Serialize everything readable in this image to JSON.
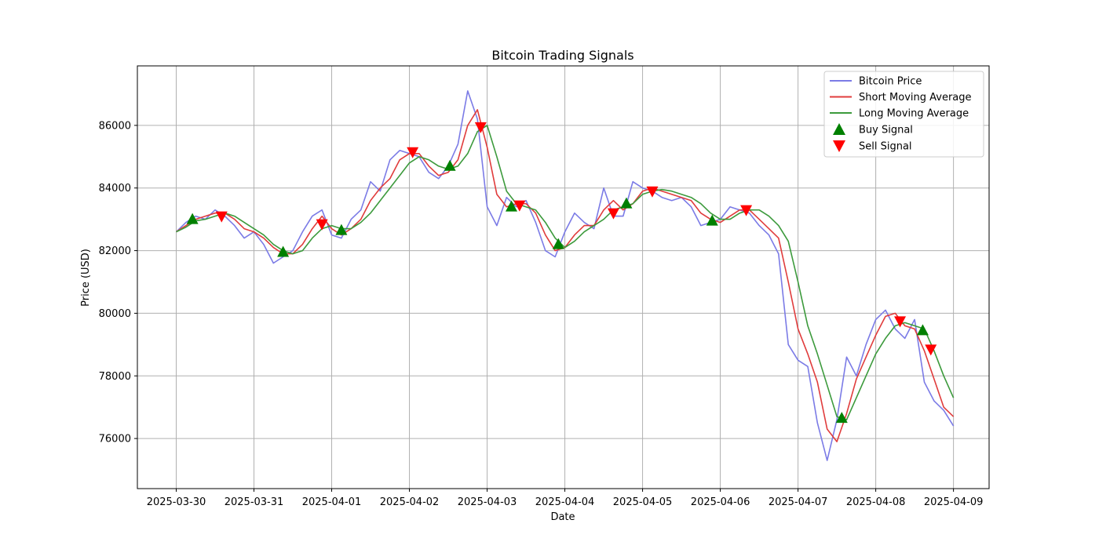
{
  "chart_data": {
    "type": "line",
    "title": "Bitcoin Trading Signals",
    "xlabel": "Date",
    "ylabel": "Price (USD)",
    "grid": true,
    "legend_position": "top-right",
    "xlim": [
      "2025-03-29 12:00",
      "2025-04-09 11:00"
    ],
    "ylim": [
      74400,
      87900
    ],
    "x_ticks": [
      "2025-03-30",
      "2025-03-31",
      "2025-04-01",
      "2025-04-02",
      "2025-04-03",
      "2025-04-04",
      "2025-04-05",
      "2025-04-06",
      "2025-04-07",
      "2025-04-08",
      "2025-04-09"
    ],
    "y_ticks": [
      76000,
      78000,
      80000,
      82000,
      84000,
      86000
    ],
    "series": [
      {
        "name": "Bitcoin Price",
        "color": "#7b7be6",
        "x": [
          "2025-03-30 00:00",
          "2025-03-30 03:00",
          "2025-03-30 06:00",
          "2025-03-30 09:00",
          "2025-03-30 12:00",
          "2025-03-30 15:00",
          "2025-03-30 18:00",
          "2025-03-30 21:00",
          "2025-03-31 00:00",
          "2025-03-31 03:00",
          "2025-03-31 06:00",
          "2025-03-31 09:00",
          "2025-03-31 12:00",
          "2025-03-31 15:00",
          "2025-03-31 18:00",
          "2025-03-31 21:00",
          "2025-04-01 00:00",
          "2025-04-01 03:00",
          "2025-04-01 06:00",
          "2025-04-01 09:00",
          "2025-04-01 12:00",
          "2025-04-01 15:00",
          "2025-04-01 18:00",
          "2025-04-01 21:00",
          "2025-04-02 00:00",
          "2025-04-02 03:00",
          "2025-04-02 06:00",
          "2025-04-02 09:00",
          "2025-04-02 12:00",
          "2025-04-02 15:00",
          "2025-04-02 18:00",
          "2025-04-02 21:00",
          "2025-04-03 00:00",
          "2025-04-03 03:00",
          "2025-04-03 06:00",
          "2025-04-03 09:00",
          "2025-04-03 12:00",
          "2025-04-03 15:00",
          "2025-04-03 18:00",
          "2025-04-03 21:00",
          "2025-04-04 00:00",
          "2025-04-04 03:00",
          "2025-04-04 06:00",
          "2025-04-04 09:00",
          "2025-04-04 12:00",
          "2025-04-04 15:00",
          "2025-04-04 18:00",
          "2025-04-04 21:00",
          "2025-04-05 00:00",
          "2025-04-05 03:00",
          "2025-04-05 06:00",
          "2025-04-05 09:00",
          "2025-04-05 12:00",
          "2025-04-05 15:00",
          "2025-04-05 18:00",
          "2025-04-05 21:00",
          "2025-04-06 00:00",
          "2025-04-06 03:00",
          "2025-04-06 06:00",
          "2025-04-06 09:00",
          "2025-04-06 12:00",
          "2025-04-06 15:00",
          "2025-04-06 18:00",
          "2025-04-06 21:00",
          "2025-04-07 00:00",
          "2025-04-07 03:00",
          "2025-04-07 06:00",
          "2025-04-07 09:00",
          "2025-04-07 12:00",
          "2025-04-07 15:00",
          "2025-04-07 18:00",
          "2025-04-07 21:00",
          "2025-04-08 00:00",
          "2025-04-08 03:00",
          "2025-04-08 06:00",
          "2025-04-08 09:00",
          "2025-04-08 12:00",
          "2025-04-08 15:00",
          "2025-04-08 18:00",
          "2025-04-08 21:00",
          "2025-04-09 00:00"
        ],
        "values": [
          82600,
          82900,
          83100,
          83000,
          83300,
          83100,
          82800,
          82400,
          82600,
          82200,
          81600,
          81800,
          82000,
          82600,
          83100,
          83300,
          82500,
          82400,
          83000,
          83300,
          84200,
          83900,
          84900,
          85200,
          85100,
          85000,
          84500,
          84300,
          84700,
          85400,
          87100,
          86200,
          83400,
          82800,
          83700,
          83400,
          83600,
          82900,
          82000,
          81800,
          82600,
          83200,
          82900,
          82700,
          84000,
          83100,
          83100,
          84200,
          84000,
          83900,
          83700,
          83600,
          83700,
          83400,
          82800,
          82900,
          83000,
          83400,
          83300,
          83200,
          82800,
          82500,
          81900,
          79000,
          78500,
          78300,
          76500,
          75300,
          76600,
          78600,
          78000,
          79000,
          79800,
          80100,
          79500,
          79200,
          79800,
          77800,
          77200,
          76900,
          76400
        ]
      },
      {
        "name": "Short Moving Average",
        "color": "#e03c3c",
        "x": [
          "2025-03-30 00:00",
          "2025-03-30 03:00",
          "2025-03-30 06:00",
          "2025-03-30 09:00",
          "2025-03-30 12:00",
          "2025-03-30 15:00",
          "2025-03-30 18:00",
          "2025-03-30 21:00",
          "2025-03-31 00:00",
          "2025-03-31 03:00",
          "2025-03-31 06:00",
          "2025-03-31 09:00",
          "2025-03-31 12:00",
          "2025-03-31 15:00",
          "2025-03-31 18:00",
          "2025-03-31 21:00",
          "2025-04-01 00:00",
          "2025-04-01 03:00",
          "2025-04-01 06:00",
          "2025-04-01 09:00",
          "2025-04-01 12:00",
          "2025-04-01 15:00",
          "2025-04-01 18:00",
          "2025-04-01 21:00",
          "2025-04-02 00:00",
          "2025-04-02 03:00",
          "2025-04-02 06:00",
          "2025-04-02 09:00",
          "2025-04-02 12:00",
          "2025-04-02 15:00",
          "2025-04-02 18:00",
          "2025-04-02 21:00",
          "2025-04-03 00:00",
          "2025-04-03 03:00",
          "2025-04-03 06:00",
          "2025-04-03 09:00",
          "2025-04-03 12:00",
          "2025-04-03 15:00",
          "2025-04-03 18:00",
          "2025-04-03 21:00",
          "2025-04-04 00:00",
          "2025-04-04 03:00",
          "2025-04-04 06:00",
          "2025-04-04 09:00",
          "2025-04-04 12:00",
          "2025-04-04 15:00",
          "2025-04-04 18:00",
          "2025-04-04 21:00",
          "2025-04-05 00:00",
          "2025-04-05 03:00",
          "2025-04-05 06:00",
          "2025-04-05 09:00",
          "2025-04-05 12:00",
          "2025-04-05 15:00",
          "2025-04-05 18:00",
          "2025-04-05 21:00",
          "2025-04-06 00:00",
          "2025-04-06 03:00",
          "2025-04-06 06:00",
          "2025-04-06 09:00",
          "2025-04-06 12:00",
          "2025-04-06 15:00",
          "2025-04-06 18:00",
          "2025-04-06 21:00",
          "2025-04-07 00:00",
          "2025-04-07 03:00",
          "2025-04-07 06:00",
          "2025-04-07 09:00",
          "2025-04-07 12:00",
          "2025-04-07 15:00",
          "2025-04-07 18:00",
          "2025-04-07 21:00",
          "2025-04-08 00:00",
          "2025-04-08 03:00",
          "2025-04-08 06:00",
          "2025-04-08 09:00",
          "2025-04-08 12:00",
          "2025-04-08 15:00",
          "2025-04-08 18:00",
          "2025-04-08 21:00",
          "2025-04-09 00:00"
        ],
        "values": [
          82600,
          82800,
          83000,
          83100,
          83200,
          83200,
          83000,
          82700,
          82600,
          82400,
          82100,
          81900,
          81900,
          82200,
          82700,
          83100,
          82700,
          82500,
          82700,
          83000,
          83600,
          84000,
          84300,
          84900,
          85100,
          85100,
          84700,
          84400,
          84500,
          84900,
          86000,
          86500,
          85300,
          83800,
          83400,
          83500,
          83500,
          83200,
          82500,
          82000,
          82100,
          82500,
          82800,
          82800,
          83300,
          83600,
          83300,
          83500,
          83900,
          84000,
          83900,
          83800,
          83700,
          83600,
          83200,
          83000,
          82900,
          83100,
          83300,
          83300,
          83000,
          82700,
          82400,
          81000,
          79500,
          78700,
          77800,
          76300,
          75900,
          76800,
          77900,
          78600,
          79300,
          79900,
          80000,
          79600,
          79500,
          78800,
          77900,
          77000,
          76700
        ]
      },
      {
        "name": "Long Moving Average",
        "color": "#3c9a3c",
        "x": [
          "2025-03-30 00:00",
          "2025-03-30 03:00",
          "2025-03-30 06:00",
          "2025-03-30 09:00",
          "2025-03-30 12:00",
          "2025-03-30 15:00",
          "2025-03-30 18:00",
          "2025-03-30 21:00",
          "2025-03-31 00:00",
          "2025-03-31 03:00",
          "2025-03-31 06:00",
          "2025-03-31 09:00",
          "2025-03-31 12:00",
          "2025-03-31 15:00",
          "2025-03-31 18:00",
          "2025-03-31 21:00",
          "2025-04-01 00:00",
          "2025-04-01 03:00",
          "2025-04-01 06:00",
          "2025-04-01 09:00",
          "2025-04-01 12:00",
          "2025-04-01 15:00",
          "2025-04-01 18:00",
          "2025-04-01 21:00",
          "2025-04-02 00:00",
          "2025-04-02 03:00",
          "2025-04-02 06:00",
          "2025-04-02 09:00",
          "2025-04-02 12:00",
          "2025-04-02 15:00",
          "2025-04-02 18:00",
          "2025-04-02 21:00",
          "2025-04-03 00:00",
          "2025-04-03 03:00",
          "2025-04-03 06:00",
          "2025-04-03 09:00",
          "2025-04-03 12:00",
          "2025-04-03 15:00",
          "2025-04-03 18:00",
          "2025-04-03 21:00",
          "2025-04-04 00:00",
          "2025-04-04 03:00",
          "2025-04-04 06:00",
          "2025-04-04 09:00",
          "2025-04-04 12:00",
          "2025-04-04 15:00",
          "2025-04-04 18:00",
          "2025-04-04 21:00",
          "2025-04-05 00:00",
          "2025-04-05 03:00",
          "2025-04-05 06:00",
          "2025-04-05 09:00",
          "2025-04-05 12:00",
          "2025-04-05 15:00",
          "2025-04-05 18:00",
          "2025-04-05 21:00",
          "2025-04-06 00:00",
          "2025-04-06 03:00",
          "2025-04-06 06:00",
          "2025-04-06 09:00",
          "2025-04-06 12:00",
          "2025-04-06 15:00",
          "2025-04-06 18:00",
          "2025-04-06 21:00",
          "2025-04-07 00:00",
          "2025-04-07 03:00",
          "2025-04-07 06:00",
          "2025-04-07 09:00",
          "2025-04-07 12:00",
          "2025-04-07 15:00",
          "2025-04-07 18:00",
          "2025-04-07 21:00",
          "2025-04-08 00:00",
          "2025-04-08 03:00",
          "2025-04-08 06:00",
          "2025-04-08 09:00",
          "2025-04-08 12:00",
          "2025-04-08 15:00",
          "2025-04-08 18:00",
          "2025-04-08 21:00",
          "2025-04-09 00:00"
        ],
        "values": [
          82600,
          82750,
          82950,
          83000,
          83100,
          83200,
          83100,
          82900,
          82700,
          82500,
          82200,
          82000,
          81900,
          82000,
          82400,
          82700,
          82800,
          82700,
          82700,
          82900,
          83200,
          83600,
          84000,
          84400,
          84800,
          85000,
          84900,
          84700,
          84600,
          84700,
          85100,
          85800,
          86000,
          85000,
          83900,
          83500,
          83400,
          83300,
          82900,
          82400,
          82100,
          82300,
          82600,
          82800,
          83000,
          83300,
          83400,
          83500,
          83800,
          83900,
          83950,
          83900,
          83800,
          83700,
          83500,
          83200,
          83000,
          83000,
          83200,
          83300,
          83300,
          83100,
          82800,
          82300,
          81000,
          79600,
          78700,
          77700,
          76700,
          76600,
          77300,
          78000,
          78700,
          79200,
          79600,
          79700,
          79600,
          79500,
          78800,
          78000,
          77300
        ]
      }
    ],
    "buy_signals": {
      "name": "Buy Signal",
      "color": "#008000",
      "x": [
        "2025-03-30 05:00",
        "2025-03-31 09:00",
        "2025-04-01 03:00",
        "2025-04-02 12:30",
        "2025-04-03 07:30",
        "2025-04-03 22:00",
        "2025-04-04 19:00",
        "2025-04-05 21:30",
        "2025-04-07 13:30",
        "2025-04-08 14:30"
      ],
      "values": [
        83000,
        81950,
        82650,
        84700,
        83400,
        82200,
        83500,
        82950,
        76650,
        79450
      ]
    },
    "sell_signals": {
      "name": "Sell Signal",
      "color": "#ff0000",
      "x": [
        "2025-03-30 14:00",
        "2025-03-31 21:00",
        "2025-04-02 01:00",
        "2025-04-02 22:00",
        "2025-04-03 10:00",
        "2025-04-04 15:00",
        "2025-04-05 03:00",
        "2025-04-06 08:00",
        "2025-04-08 07:30",
        "2025-04-08 17:00"
      ],
      "values": [
        83100,
        82850,
        85150,
        85950,
        83450,
        83200,
        83900,
        83300,
        79750,
        78850
      ]
    }
  }
}
